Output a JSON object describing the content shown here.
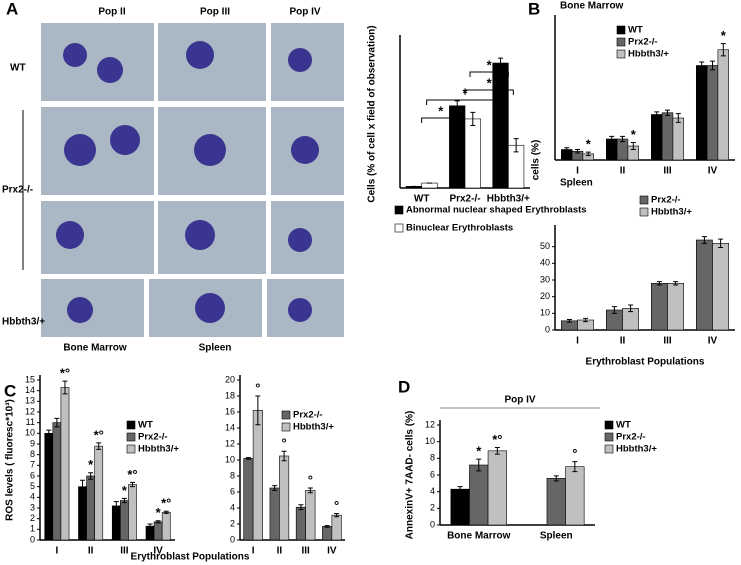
{
  "figure_a": {
    "panel": "A",
    "columns": [
      "Pop II",
      "Pop III",
      "Pop IV"
    ],
    "rows": [
      "WT",
      "Prx2-/-",
      "Hbbth3/+"
    ],
    "tissues": [
      "Bone Marrow",
      "Spleen"
    ]
  },
  "chart_data": [
    {
      "type": "bar",
      "ylabel": "Cells (% of cell x field of observation)",
      "categories": [
        "WT",
        "Prx2-/-",
        "Hbbth3/+"
      ],
      "series": [
        {
          "name": "Abnormal nuclear shaped Erythroblasts",
          "color": "#000000",
          "values": [
            0.5,
            25,
            38
          ],
          "errors": [
            0,
            1.5,
            1.5
          ]
        },
        {
          "name": "Binuclear Erythroblasts",
          "color": "#ffffff",
          "values": [
            1.5,
            21,
            13
          ],
          "errors": [
            0,
            2,
            2
          ]
        }
      ],
      "brackets": [
        "*",
        "*",
        "*",
        "*"
      ],
      "ylim": [
        0,
        45
      ],
      "yticks": []
    },
    {
      "type": "bar",
      "panel": "B",
      "title": "Bone Marrow",
      "categories": [
        "I",
        "II",
        "III",
        "IV"
      ],
      "series": [
        {
          "name": "WT",
          "color": "#000000",
          "values": [
            6,
            12,
            26,
            54
          ],
          "errors": [
            1,
            1.5,
            1.5,
            2
          ]
        },
        {
          "name": "Prx2-/-",
          "color": "#666666",
          "values": [
            5,
            12,
            27,
            54
          ],
          "errors": [
            1,
            1.5,
            1.5,
            2.5
          ]
        },
        {
          "name": "Hbbth3/+",
          "color": "#c0c0c0",
          "values": [
            3.5,
            8,
            24,
            63
          ],
          "errors": [
            1,
            2,
            2.5,
            3.5
          ],
          "notes": [
            "*",
            "*",
            null,
            "*"
          ]
        }
      ],
      "ylim": [
        0,
        80
      ],
      "yticks": []
    },
    {
      "type": "bar",
      "title": "Spleen",
      "ylabel": "cells (%)",
      "xlabel": "Erythroblast Populations",
      "categories": [
        "I",
        "II",
        "III",
        "IV"
      ],
      "series": [
        {
          "name": "Prx2-/-",
          "color": "#666666",
          "values": [
            5.5,
            12,
            28,
            54
          ],
          "errors": [
            0.8,
            2,
            1,
            2
          ]
        },
        {
          "name": "Hbbth3/+",
          "color": "#c0c0c0",
          "values": [
            6,
            13,
            28,
            52
          ],
          "errors": [
            1,
            2,
            1,
            2.5
          ]
        }
      ],
      "ylim": [
        0,
        60
      ],
      "yticks": [
        0,
        10,
        20,
        30,
        40,
        50
      ]
    },
    {
      "type": "bar",
      "panel": "C",
      "ylabel": "ROS levels ( fluoresc*10³)",
      "xlabel": "Erythroblast Populations",
      "categories": [
        "I",
        "II",
        "III",
        "IV"
      ],
      "series": [
        {
          "name": "WT",
          "color": "#000000",
          "values": [
            10,
            5,
            3.2,
            1.3
          ],
          "errors": [
            0.3,
            0.6,
            0.4,
            0.2
          ]
        },
        {
          "name": "Prx2-/-",
          "color": "#666666",
          "values": [
            11,
            6,
            3.7,
            1.7
          ],
          "errors": [
            0.4,
            0.3,
            0.2,
            0.1
          ],
          "notes": [
            null,
            "*",
            "*",
            "*"
          ]
        },
        {
          "name": "Hbbth3/+",
          "color": "#c0c0c0",
          "values": [
            14.3,
            8.8,
            5.2,
            2.6
          ],
          "errors": [
            0.6,
            0.3,
            0.2,
            0.1
          ],
          "notes": [
            "*°",
            "*°",
            "*°",
            "*°"
          ]
        }
      ],
      "ylim": [
        0,
        15
      ],
      "yticks": [
        0,
        1,
        2,
        3,
        4,
        5,
        6,
        7,
        8,
        9,
        10,
        11,
        12,
        13,
        14,
        15
      ]
    },
    {
      "type": "bar",
      "categories": [
        "I",
        "II",
        "III",
        "IV"
      ],
      "series": [
        {
          "name": "Prx2-/-",
          "color": "#666666",
          "values": [
            10.2,
            6.5,
            4.1,
            1.7
          ],
          "errors": [
            0.1,
            0.3,
            0.3,
            0.1
          ]
        },
        {
          "name": "Hbbth3/+",
          "color": "#c0c0c0",
          "values": [
            16.2,
            10.5,
            6.2,
            3.1
          ],
          "errors": [
            1.8,
            0.6,
            0.3,
            0.2
          ],
          "notes": [
            "°",
            "°",
            "°",
            "°"
          ]
        }
      ],
      "ylim": [
        0,
        20
      ],
      "yticks": [
        0,
        2,
        4,
        6,
        8,
        10,
        12,
        14,
        16,
        18,
        20
      ]
    },
    {
      "type": "bar",
      "panel": "D",
      "title": "Pop IV",
      "ylabel": "AnnexinV+ 7AAD- cells (%)",
      "categories": [
        "Bone Marrow",
        "Spleen"
      ],
      "series": [
        {
          "name": "WT",
          "color": "#000000",
          "values": [
            4.3,
            null
          ],
          "errors": [
            0.3,
            null
          ]
        },
        {
          "name": "Prx2-/-",
          "color": "#666666",
          "values": [
            7.2,
            5.6
          ],
          "errors": [
            0.7,
            0.3
          ],
          "notes": [
            "*",
            null
          ]
        },
        {
          "name": "Hbbth3/+",
          "color": "#c0c0c0",
          "values": [
            8.9,
            7.0
          ],
          "errors": [
            0.4,
            0.6
          ],
          "notes": [
            "*°",
            "°"
          ]
        }
      ],
      "ylim": [
        0,
        12
      ],
      "yticks": [
        0,
        2,
        4,
        6,
        8,
        10,
        12
      ]
    }
  ]
}
